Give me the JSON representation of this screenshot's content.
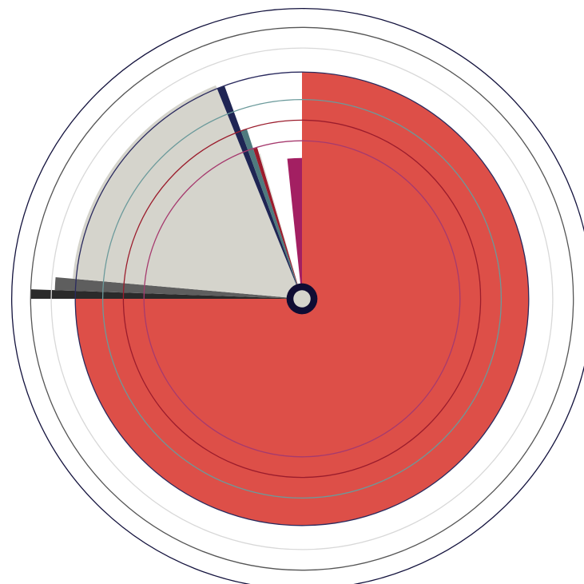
{
  "chart_data": {
    "type": "polar-area",
    "title": "",
    "legend": "none",
    "grid": false,
    "start_angle_deg": 0,
    "direction": "clockwise",
    "segments": [
      {
        "start_deg": 0,
        "end_deg": 270,
        "value": 0.66,
        "color": "#dd4f48"
      },
      {
        "start_deg": 270,
        "end_deg": 272,
        "value": 0.79,
        "color": "#2a2a2a"
      },
      {
        "start_deg": 272,
        "end_deg": 275,
        "value": 0.72,
        "color": "#5e5e5e"
      },
      {
        "start_deg": 275,
        "end_deg": 338,
        "value": 0.67,
        "color": "#d5d4cc"
      },
      {
        "start_deg": 338,
        "end_deg": 340,
        "value": 0.66,
        "color": "#1f2554"
      },
      {
        "start_deg": 340,
        "end_deg": 342,
        "value": 0.52,
        "color": "#4f7a7e"
      },
      {
        "start_deg": 342,
        "end_deg": 343.5,
        "value": 0.46,
        "color": "#9b1c2c"
      },
      {
        "start_deg": 343.5,
        "end_deg": 344,
        "value": 0.44,
        "color": "#e0dfd8"
      },
      {
        "start_deg": 354,
        "end_deg": 360,
        "value": 0.41,
        "color": "#a31f62"
      }
    ],
    "rings": [
      {
        "value": 0.46,
        "color": "#a63a6e"
      },
      {
        "value": 0.52,
        "color": "#9b1c2c"
      },
      {
        "value": 0.58,
        "color": "#6b9a9b"
      },
      {
        "value": 0.66,
        "color": "#2a2a5e"
      },
      {
        "value": 0.73,
        "color": "#d8d8d8"
      },
      {
        "value": 0.79,
        "color": "#555555"
      },
      {
        "value": 0.845,
        "color": "#13123d"
      }
    ],
    "center_marker": {
      "outer": 0.045,
      "inner": 0.025,
      "color": "#0f0c33",
      "fill": "#d5d4cc"
    }
  }
}
